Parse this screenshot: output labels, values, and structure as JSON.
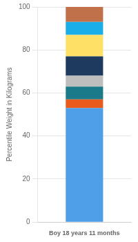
{
  "chart_data": {
    "type": "bar",
    "stacked": true,
    "grid": true,
    "categories": [
      "Boy 18 years 11 months"
    ],
    "ylabel": "Percentile Weight in Kilograms",
    "ylim": [
      0,
      100
    ],
    "yticks": [
      0,
      20,
      40,
      60,
      80,
      100
    ],
    "series": [
      {
        "color": "#4F9EE8",
        "values": [
          53
        ]
      },
      {
        "color": "#E85B1A",
        "values": [
          4
        ]
      },
      {
        "color": "#1A7A8A",
        "values": [
          6
        ]
      },
      {
        "color": "#BEBEBE",
        "values": [
          5
        ]
      },
      {
        "color": "#1E3A5F",
        "values": [
          9
        ]
      },
      {
        "color": "#FFE066",
        "values": [
          10
        ]
      },
      {
        "color": "#1AAEE8",
        "values": [
          6
        ]
      },
      {
        "color": "#C0714A",
        "values": [
          7
        ]
      }
    ]
  }
}
